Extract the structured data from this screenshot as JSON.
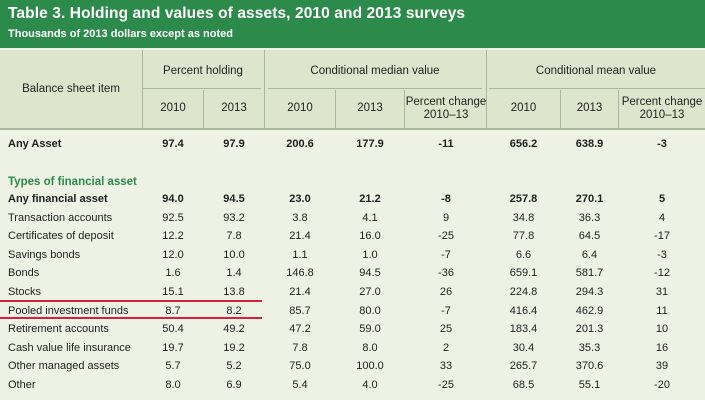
{
  "title": "Table 3. Holding and values of assets, 2010 and 2013 surveys",
  "subtitle": "Thousands of 2013 dollars except as noted",
  "headers": {
    "item": "Balance sheet item",
    "group_holding": "Percent holding",
    "group_median": "Conditional median value",
    "group_mean": "Conditional mean value",
    "y2010": "2010",
    "y2013": "2013",
    "pct_change_line1": "Percent change",
    "pct_change_line2": "2010–13"
  },
  "any_asset": {
    "label": "Any Asset",
    "values": [
      "97.4",
      "97.9",
      "200.6",
      "177.9",
      "-11",
      "656.2",
      "638.9",
      "-3"
    ]
  },
  "section": "Types of financial asset",
  "rows": [
    {
      "label": "Any financial asset",
      "bold": true,
      "values": [
        "94.0",
        "94.5",
        "23.0",
        "21.2",
        "-8",
        "257.8",
        "270.1",
        "5"
      ]
    },
    {
      "label": "Transaction accounts",
      "values": [
        "92.5",
        "93.2",
        "3.8",
        "4.1",
        "9",
        "34.8",
        "36.3",
        "4"
      ]
    },
    {
      "label": "Certificates of deposit",
      "values": [
        "12.2",
        "7.8",
        "21.4",
        "16.0",
        "-25",
        "77.8",
        "64.5",
        "-17"
      ]
    },
    {
      "label": "Savings bonds",
      "values": [
        "12.0",
        "10.0",
        "1.1",
        "1.0",
        "-7",
        "6.6",
        "6.4",
        "-3"
      ]
    },
    {
      "label": "Bonds",
      "values": [
        "1.6",
        "1.4",
        "146.8",
        "94.5",
        "-36",
        "659.1",
        "581.7",
        "-12"
      ]
    },
    {
      "label": "Stocks",
      "values": [
        "15.1",
        "13.8",
        "21.4",
        "27.0",
        "26",
        "224.8",
        "294.3",
        "31"
      ]
    },
    {
      "label": "Pooled investment funds",
      "values": [
        "8.7",
        "8.2",
        "85.7",
        "80.0",
        "-7",
        "416.4",
        "462.9",
        "11"
      ]
    },
    {
      "label": "Retirement accounts",
      "values": [
        "50.4",
        "49.2",
        "47.2",
        "59.0",
        "25",
        "183.4",
        "201.3",
        "10"
      ]
    },
    {
      "label": "Cash value life insurance",
      "values": [
        "19.7",
        "19.2",
        "7.8",
        "8.0",
        "2",
        "30.4",
        "35.3",
        "16"
      ]
    },
    {
      "label": "Other managed assets",
      "values": [
        "5.7",
        "5.2",
        "75.0",
        "100.0",
        "33",
        "265.7",
        "370.6",
        "39"
      ]
    },
    {
      "label": "Other",
      "values": [
        "8.0",
        "6.9",
        "5.4",
        "4.0",
        "-25",
        "68.5",
        "55.1",
        "-20"
      ]
    }
  ],
  "colors": {
    "banner": "#2c8a4b",
    "header_bg": "#dde6cc",
    "body_bg": "#eef2e4",
    "section_text": "#2c8a4b",
    "highlight_underline": "#d0243a"
  }
}
